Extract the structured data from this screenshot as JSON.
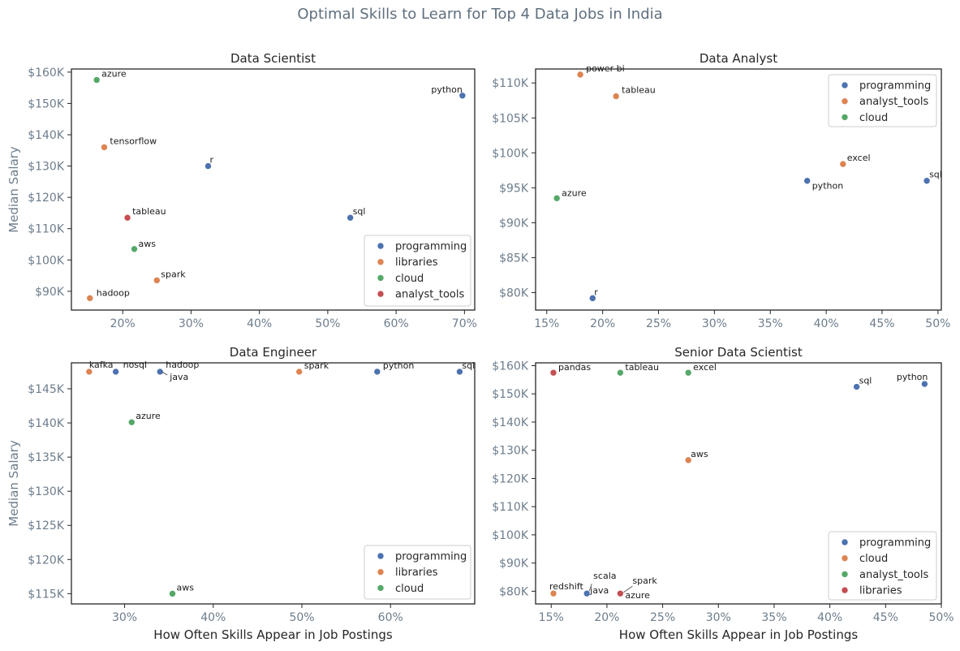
{
  "figure": {
    "title": "Optimal Skills to Learn for Top 4 Data Jobs in India"
  },
  "colors": {
    "programming": "#4c72b0",
    "libraries": "#dd8452",
    "analyst_tools": "#c44e52",
    "cloud": "#55a868",
    "da_analyst_tools": "#dd8452",
    "da_cloud": "#55a868",
    "sds_cloud": "#dd8452",
    "sds_analyst_tools": "#55a868",
    "sds_libraries": "#c44e52",
    "axis_label_gray": "#6d7d8c",
    "axis_label_dark": "#262626"
  },
  "chart_data": [
    {
      "type": "scatter",
      "title": "Data Scientist",
      "xlabel": "",
      "ylabel": "Median Salary",
      "x_unit": "percent",
      "xlim": [
        12.5,
        71.5
      ],
      "ylim": [
        84000,
        161000
      ],
      "xticks": [
        20,
        30,
        40,
        50,
        60,
        70
      ],
      "yticks": [
        90000,
        100000,
        110000,
        120000,
        130000,
        140000,
        150000,
        160000
      ],
      "xtick_labels": [
        "20%",
        "30%",
        "40%",
        "50%",
        "60%",
        "70%"
      ],
      "ytick_labels": [
        "$90K",
        "$100K",
        "$110K",
        "$120K",
        "$130K",
        "$140K",
        "$150K",
        "$160K"
      ],
      "legend": {
        "position": "lower right",
        "entries": [
          {
            "name": "programming",
            "color": "#4c72b0"
          },
          {
            "name": "libraries",
            "color": "#dd8452"
          },
          {
            "name": "cloud",
            "color": "#55a868"
          },
          {
            "name": "analyst_tools",
            "color": "#c44e52"
          }
        ]
      },
      "points": [
        {
          "skill": "azure",
          "category": "cloud",
          "x": 16.2,
          "y": 157500
        },
        {
          "skill": "python",
          "category": "programming",
          "x": 69.7,
          "y": 152500
        },
        {
          "skill": "tensorflow",
          "category": "libraries",
          "x": 17.3,
          "y": 136000
        },
        {
          "skill": "r",
          "category": "programming",
          "x": 32.5,
          "y": 130000
        },
        {
          "skill": "tableau",
          "category": "analyst_tools",
          "x": 20.7,
          "y": 113500
        },
        {
          "skill": "sql",
          "category": "programming",
          "x": 53.3,
          "y": 113500
        },
        {
          "skill": "aws",
          "category": "cloud",
          "x": 21.7,
          "y": 103500
        },
        {
          "skill": "spark",
          "category": "libraries",
          "x": 25.0,
          "y": 93500
        },
        {
          "skill": "hadoop",
          "category": "libraries",
          "x": 15.2,
          "y": 87800
        }
      ]
    },
    {
      "type": "scatter",
      "title": "Data Analyst",
      "xlabel": "",
      "ylabel": "",
      "x_unit": "percent",
      "xlim": [
        14.0,
        50.3
      ],
      "ylim": [
        77500,
        112000
      ],
      "xticks": [
        15,
        20,
        25,
        30,
        35,
        40,
        45,
        50
      ],
      "yticks": [
        80000,
        85000,
        90000,
        95000,
        100000,
        105000,
        110000
      ],
      "xtick_labels": [
        "15%",
        "20%",
        "25%",
        "30%",
        "35%",
        "40%",
        "45%",
        "50%"
      ],
      "ytick_labels": [
        "$80K",
        "$85K",
        "$90K",
        "$95K",
        "$100K",
        "$105K",
        "$110K"
      ],
      "legend": {
        "position": "upper right",
        "entries": [
          {
            "name": "programming",
            "color": "#4c72b0"
          },
          {
            "name": "analyst_tools",
            "color": "#dd8452"
          },
          {
            "name": "cloud",
            "color": "#55a868"
          }
        ]
      },
      "points": [
        {
          "skill": "power bi",
          "category": "analyst_tools",
          "x": 18.0,
          "y": 111200
        },
        {
          "skill": "tableau",
          "category": "analyst_tools",
          "x": 21.2,
          "y": 108100
        },
        {
          "skill": "excel",
          "category": "analyst_tools",
          "x": 41.5,
          "y": 98400
        },
        {
          "skill": "python",
          "category": "programming",
          "x": 38.3,
          "y": 96000
        },
        {
          "skill": "sql",
          "category": "programming",
          "x": 49.0,
          "y": 96000
        },
        {
          "skill": "azure",
          "category": "cloud",
          "x": 15.9,
          "y": 93500
        },
        {
          "skill": "r",
          "category": "programming",
          "x": 19.1,
          "y": 79200
        }
      ]
    },
    {
      "type": "scatter",
      "title": "Data Engineer",
      "xlabel": "How Often Skills Appear in Job Postings",
      "ylabel": "Median Salary",
      "x_unit": "percent",
      "xlim": [
        24.0,
        69.5
      ],
      "ylim": [
        113500,
        148800
      ],
      "xticks": [
        30,
        40,
        50,
        60
      ],
      "yticks": [
        115000,
        120000,
        125000,
        130000,
        135000,
        140000,
        145000
      ],
      "xtick_labels": [
        "30%",
        "40%",
        "50%",
        "60%"
      ],
      "ytick_labels": [
        "$115K",
        "$120K",
        "$125K",
        "$130K",
        "$135K",
        "$140K",
        "$145K"
      ],
      "legend": {
        "position": "lower right",
        "entries": [
          {
            "name": "programming",
            "color": "#4c72b0"
          },
          {
            "name": "libraries",
            "color": "#dd8452"
          },
          {
            "name": "cloud",
            "color": "#55a868"
          }
        ]
      },
      "points": [
        {
          "skill": "kafka",
          "category": "libraries",
          "x": 26.0,
          "y": 147500
        },
        {
          "skill": "nosql",
          "category": "programming",
          "x": 29.0,
          "y": 147500
        },
        {
          "skill": "hadoop",
          "category": "libraries",
          "x": 34.0,
          "y": 147500
        },
        {
          "skill": "java",
          "category": "programming",
          "x": 34.0,
          "y": 147500
        },
        {
          "skill": "spark",
          "category": "libraries",
          "x": 49.7,
          "y": 147500
        },
        {
          "skill": "python",
          "category": "programming",
          "x": 58.5,
          "y": 147500
        },
        {
          "skill": "sql",
          "category": "programming",
          "x": 67.8,
          "y": 147500
        },
        {
          "skill": "azure",
          "category": "cloud",
          "x": 30.8,
          "y": 140100
        },
        {
          "skill": "aws",
          "category": "cloud",
          "x": 35.4,
          "y": 115000
        }
      ]
    },
    {
      "type": "scatter",
      "title": "Senior Data Scientist",
      "xlabel": "How Often Skills Appear in Job Postings",
      "ylabel": "",
      "x_unit": "percent",
      "xlim": [
        13.6,
        50.0
      ],
      "ylim": [
        75500,
        161000
      ],
      "xticks": [
        15,
        20,
        25,
        30,
        35,
        40,
        45,
        50
      ],
      "yticks": [
        80000,
        90000,
        100000,
        110000,
        120000,
        130000,
        140000,
        150000,
        160000
      ],
      "xtick_labels": [
        "15%",
        "20%",
        "25%",
        "30%",
        "35%",
        "40%",
        "45%",
        "50%"
      ],
      "ytick_labels": [
        "$80K",
        "$90K",
        "$100K",
        "$110K",
        "$120K",
        "$130K",
        "$140K",
        "$150K",
        "$160K"
      ],
      "legend": {
        "position": "lower right",
        "entries": [
          {
            "name": "programming",
            "color": "#4c72b0"
          },
          {
            "name": "cloud",
            "color": "#dd8452"
          },
          {
            "name": "analyst_tools",
            "color": "#55a868"
          },
          {
            "name": "libraries",
            "color": "#c44e52"
          }
        ]
      },
      "points": [
        {
          "skill": "pandas",
          "category": "libraries",
          "x": 15.2,
          "y": 157500
        },
        {
          "skill": "tableau",
          "category": "analyst_tools",
          "x": 21.2,
          "y": 157500
        },
        {
          "skill": "excel",
          "category": "analyst_tools",
          "x": 27.3,
          "y": 157500
        },
        {
          "skill": "python",
          "category": "programming",
          "x": 48.5,
          "y": 153500
        },
        {
          "skill": "sql",
          "category": "programming",
          "x": 42.4,
          "y": 152500
        },
        {
          "skill": "aws",
          "category": "cloud",
          "x": 27.3,
          "y": 126500
        },
        {
          "skill": "redshift",
          "category": "cloud",
          "x": 15.2,
          "y": 79200
        },
        {
          "skill": "scala",
          "category": "programming",
          "x": 18.2,
          "y": 79200
        },
        {
          "skill": "java",
          "category": "programming",
          "x": 18.2,
          "y": 79200
        },
        {
          "skill": "spark",
          "category": "libraries",
          "x": 21.2,
          "y": 79200
        },
        {
          "skill": "azure",
          "category": "libraries",
          "x": 21.2,
          "y": 79200
        }
      ]
    }
  ]
}
